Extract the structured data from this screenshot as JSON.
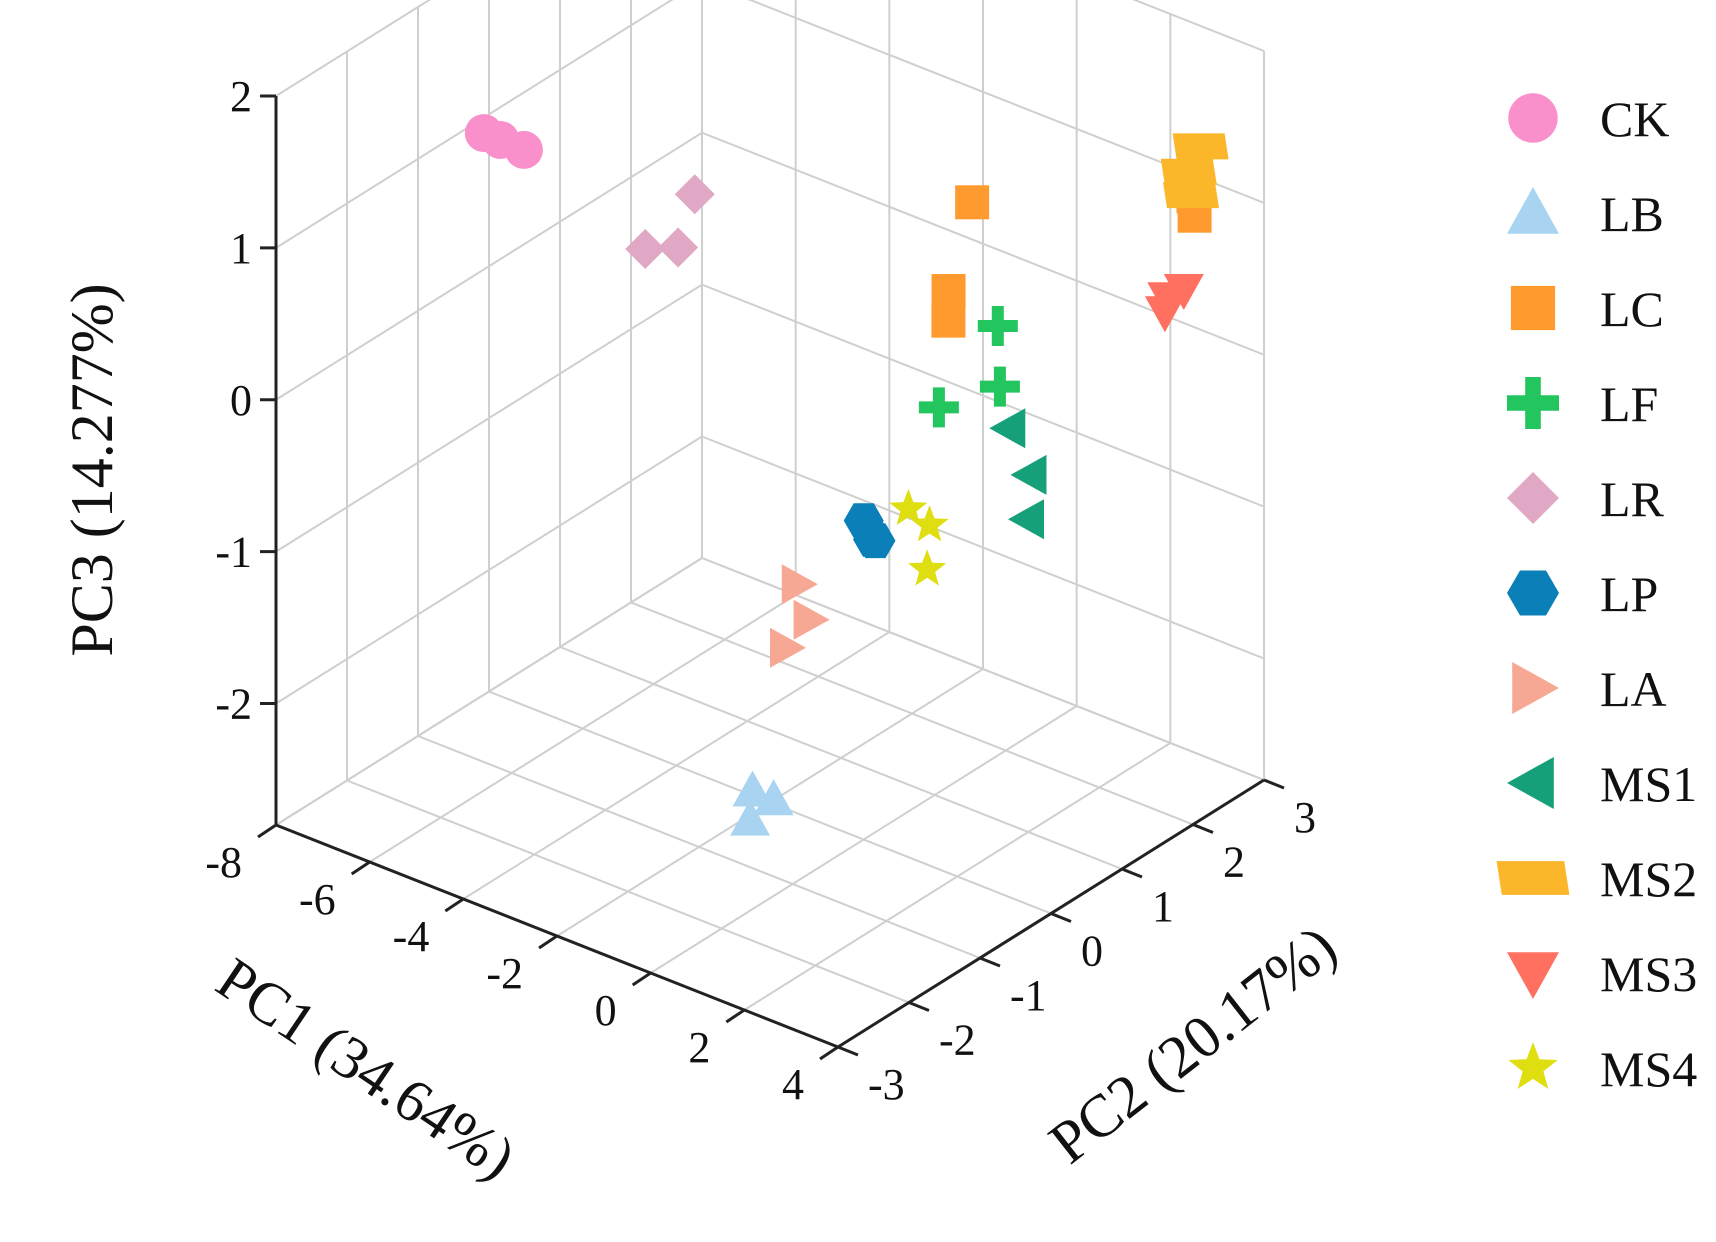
{
  "chart_data": {
    "type": "scatter",
    "dimensions": "3d",
    "axes": {
      "x": {
        "label": "PC1 (34.64%)",
        "range": [
          -8,
          4
        ],
        "ticks": [
          "-8",
          "-6",
          "-4",
          "-2",
          "0",
          "2",
          "4"
        ]
      },
      "y": {
        "label": "PC2 (20.17%)",
        "range": [
          -3,
          3
        ],
        "ticks": [
          "-3",
          "-2",
          "-1",
          "0",
          "1",
          "2",
          "3"
        ]
      },
      "z": {
        "label": "PC3 (14.277%)",
        "range": [
          -2.8,
          2
        ],
        "ticks": [
          "-2",
          "-1",
          "0",
          "1",
          "2"
        ]
      }
    },
    "grid": true,
    "legend_placement": "right",
    "series": [
      {
        "name": "CK",
        "marker": "circle",
        "color": "#f98fcb",
        "points": [
          [
            -7.2,
            -0.6,
            1.15
          ],
          [
            -7.0,
            -0.5,
            1.1
          ],
          [
            -6.8,
            -0.3,
            1.0
          ]
        ]
      },
      {
        "name": "LB",
        "marker": "triangle-up",
        "color": "#a8d4f2",
        "points": [
          [
            0.0,
            -1.6,
            -2.2
          ],
          [
            0.2,
            -1.4,
            -2.1
          ],
          [
            -0.1,
            -1.5,
            -2.05
          ]
        ]
      },
      {
        "name": "LC",
        "marker": "square",
        "color": "#ff9a2e",
        "points": [
          [
            0.8,
            1.0,
            1.2
          ],
          [
            0.6,
            0.8,
            0.65
          ],
          [
            0.9,
            0.6,
            0.55
          ],
          [
            3.0,
            2.7,
            1.25
          ],
          [
            3.1,
            2.6,
            1.05
          ],
          [
            3.2,
            2.55,
            0.95
          ]
        ]
      },
      {
        "name": "LF",
        "marker": "plus",
        "color": "#22c55e",
        "points": [
          [
            1.5,
            0.9,
            0.5
          ],
          [
            2.0,
            0.6,
            0.25
          ],
          [
            1.0,
            0.4,
            0.05
          ]
        ]
      },
      {
        "name": "LR",
        "marker": "diamond",
        "color": "#e0a8c4",
        "points": [
          [
            -3.0,
            -0.4,
            1.2
          ],
          [
            -3.3,
            -0.9,
            0.95
          ],
          [
            -2.9,
            -0.7,
            0.95
          ]
        ]
      },
      {
        "name": "LP",
        "marker": "hexagon",
        "color": "#0a7fb8",
        "points": [
          [
            0.0,
            0.0,
            -0.7
          ],
          [
            0.1,
            0.1,
            -0.85
          ],
          [
            0.2,
            0.0,
            -0.8
          ]
        ]
      },
      {
        "name": "LA",
        "marker": "triangle-right",
        "color": "#f7a894",
        "points": [
          [
            -0.8,
            -0.4,
            -1.1
          ],
          [
            -0.7,
            -0.3,
            -1.35
          ],
          [
            -0.9,
            -0.5,
            -1.5
          ]
        ]
      },
      {
        "name": "MS1",
        "marker": "triangle-left",
        "color": "#16a07a",
        "points": [
          [
            2.2,
            0.6,
            0.0
          ],
          [
            2.5,
            0.7,
            -0.3
          ],
          [
            2.6,
            0.6,
            -0.55
          ]
        ]
      },
      {
        "name": "MS2",
        "marker": "parallelogram",
        "color": "#fbb62a",
        "points": [
          [
            3.1,
            2.7,
            1.35
          ],
          [
            3.0,
            2.6,
            1.2
          ],
          [
            3.2,
            2.5,
            1.1
          ]
        ]
      },
      {
        "name": "MS3",
        "marker": "triangle-down",
        "color": "#ff7060",
        "points": [
          [
            3.3,
            2.1,
            0.55
          ],
          [
            3.5,
            2.2,
            0.6
          ],
          [
            3.4,
            2.0,
            0.5
          ]
        ]
      },
      {
        "name": "MS4",
        "marker": "star",
        "color": "#dede10",
        "points": [
          [
            0.5,
            0.3,
            -0.65
          ],
          [
            0.8,
            0.4,
            -0.75
          ],
          [
            0.9,
            0.3,
            -1.0
          ]
        ]
      }
    ]
  }
}
